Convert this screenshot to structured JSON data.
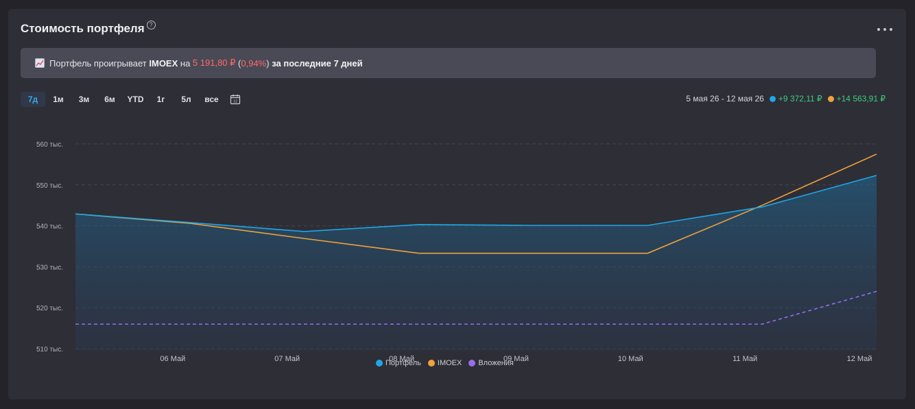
{
  "header": {
    "title": "Стоимость портфеля",
    "help_glyph": "?"
  },
  "banner": {
    "text_before": "Портфель проигрывает ",
    "index": "IMOEX",
    "text_mid": " на ",
    "diff_value": "5 191,80 ₽",
    "paren_open": " (",
    "diff_percent": "0,94%",
    "paren_close": ")",
    "text_after": " за последние 7 дней"
  },
  "periods": [
    "7д",
    "1м",
    "3м",
    "6м",
    "YTD",
    "1г",
    "5л",
    "все"
  ],
  "active_period": "7д",
  "summary": {
    "range": "5 мая 26 - 12 мая 26",
    "portfolio_change": "+9 372,11 ₽",
    "index_change": "+14 563,91 ₽"
  },
  "colors": {
    "portfolio": "#1ea7e6",
    "index": "#f0a23c",
    "investments": "#9a6cf0",
    "gain": "#3ccf7a",
    "loss": "#ff6a66"
  },
  "chart_data": {
    "type": "line",
    "x": [
      "05 Май",
      "06 Май",
      "07 Май",
      "08 Май",
      "09 Май",
      "10 Май",
      "11 Май",
      "12 Май"
    ],
    "x_tick_labels": [
      "06 Май",
      "07 Май",
      "08 Май",
      "09 Май",
      "10 Май",
      "11 Май",
      "12 Май"
    ],
    "y_tick_values": [
      510000,
      520000,
      530000,
      540000,
      550000,
      560000
    ],
    "y_tick_labels": [
      "510 тыс.",
      "520 тыс.",
      "530 тыс.",
      "540 тыс.",
      "550 тыс.",
      "560 тыс."
    ],
    "ylim": [
      509500,
      561000
    ],
    "series": [
      {
        "name": "Портфель",
        "color": "#1ea7e6",
        "filled": true,
        "dashed": false,
        "values": [
          542900,
          540800,
          538600,
          540300,
          540100,
          540100,
          544600,
          552300
        ]
      },
      {
        "name": "IMOEX",
        "color": "#f0a23c",
        "filled": false,
        "dashed": false,
        "values": [
          542900,
          540600,
          536900,
          533300,
          533300,
          533300,
          545000,
          557500
        ]
      },
      {
        "name": "Вложения",
        "color": "#9a6cf0",
        "filled": false,
        "dashed": true,
        "values": [
          516000,
          516000,
          516000,
          516000,
          516000,
          516000,
          516000,
          524000
        ]
      }
    ],
    "grid": true,
    "legend_position": "bottom-center"
  }
}
